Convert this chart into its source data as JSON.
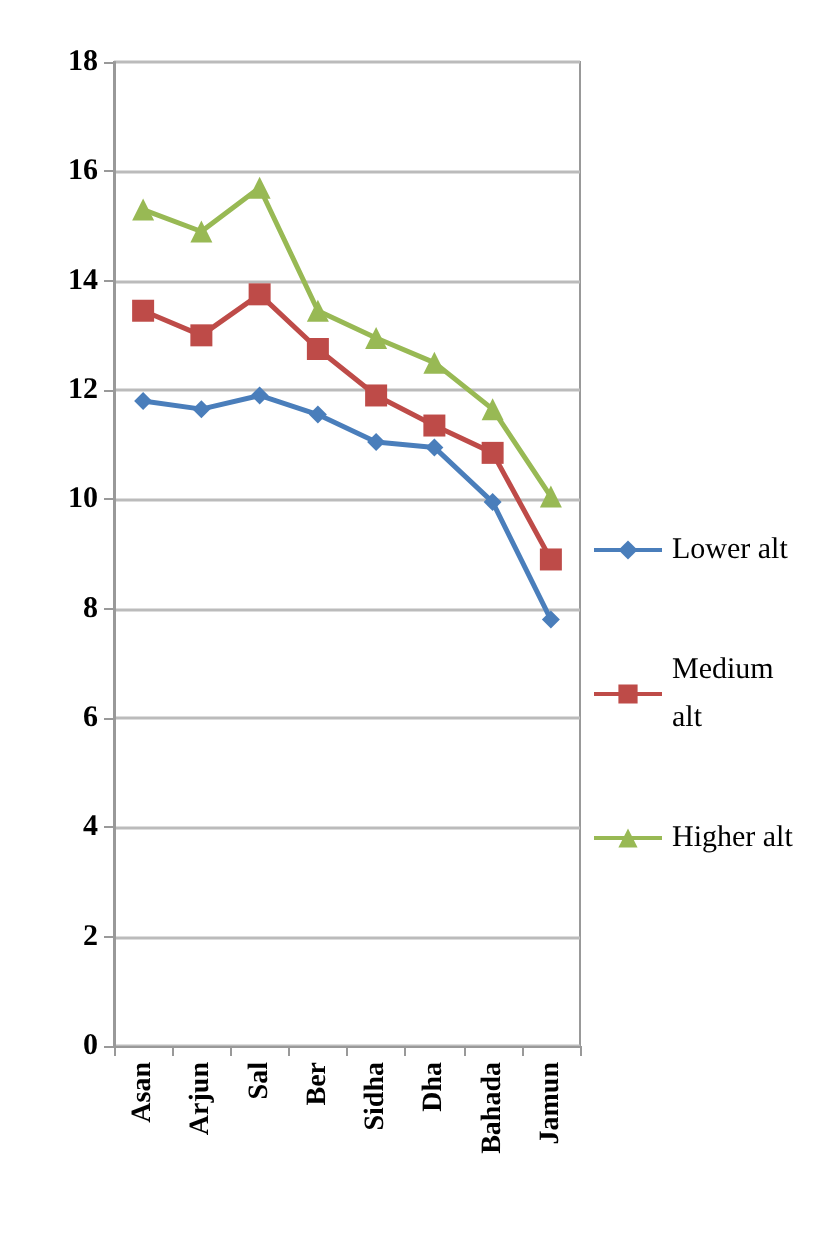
{
  "chart_data": {
    "type": "line",
    "categories": [
      "Asan",
      "Arjun",
      "Sal",
      "Ber",
      "Sidha",
      "Dha",
      "Bahada",
      "Jamun"
    ],
    "series": [
      {
        "name": "Lower alt",
        "color": "#4a7ebb",
        "marker": "diamond",
        "values": [
          11.8,
          11.65,
          11.9,
          11.55,
          11.05,
          10.95,
          9.95,
          7.8
        ]
      },
      {
        "name": "Medium alt",
        "color": "#be4b48",
        "marker": "square",
        "values": [
          13.45,
          13.0,
          13.75,
          12.75,
          11.9,
          11.35,
          10.85,
          8.9
        ]
      },
      {
        "name": "Higher alt",
        "color": "#98b954",
        "marker": "triangle",
        "values": [
          15.3,
          14.9,
          15.7,
          13.45,
          12.95,
          12.5,
          11.65,
          10.05
        ]
      }
    ],
    "ylim": [
      0,
      18
    ],
    "yticks": [
      0,
      2,
      4,
      6,
      8,
      10,
      12,
      14,
      16,
      18
    ],
    "grid": "y",
    "legend": "right"
  }
}
